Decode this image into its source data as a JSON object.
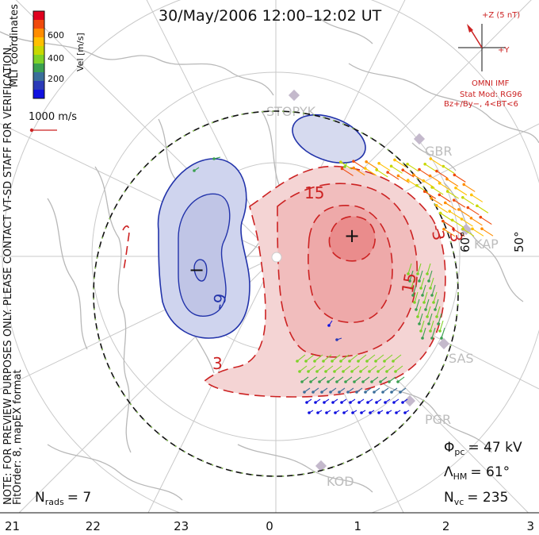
{
  "title": "30/May/2006 12:00–12:02 UT",
  "colorbar": {
    "label": "Vel [m/s]",
    "ticks": [
      "600",
      "400",
      "200"
    ],
    "colors": [
      "#e0001e",
      "#f04a0c",
      "#ff8c00",
      "#ffc000",
      "#c8d800",
      "#7ed228",
      "#3aa050",
      "#3a6e9a",
      "#2a3ab8",
      "#1010e0"
    ]
  },
  "side_labels": {
    "coords": "MLT coordinates",
    "note": "NOTE: FOR PREVIEW PURPOSES ONLY. PLEASE CONTACT VT-SD STAFF FOR VERIFICATION.",
    "fit": "FitOrder: 8, mapEX format"
  },
  "scale_vector_label": "1000 m/s",
  "imf": {
    "z_label": "+Z (5 nT)",
    "y_label": "+Y",
    "source": "OMNI IMF",
    "model": "Stat Mod: RG96",
    "condition": "Bz+/By−, 4<BT<6"
  },
  "stats": {
    "phi_symbol": "Φ",
    "phi_sub": "pc",
    "phi_value": "= 47 kV",
    "lambda_symbol": "Λ",
    "lambda_sub": "HM",
    "lambda_value": "= 61°",
    "nvc_symbol": "N",
    "nvc_sub": "vc",
    "nvc_value": "= 235",
    "nrads_symbol": "N",
    "nrads_sub": "rads",
    "nrads_value": "= 7"
  },
  "latitude_labels": [
    "60°",
    "50°"
  ],
  "stations": [
    "STOPYK",
    "GBR",
    "KAP",
    "SAS",
    "PGR",
    "KOD"
  ],
  "chart_data": {
    "type": "scatter",
    "mlt_ticks": [
      "21",
      "22",
      "23",
      "0",
      "1",
      "2",
      "3"
    ],
    "contour_labels": [
      "-9",
      "15",
      "-3",
      "3",
      "-3",
      "15",
      "3"
    ],
    "potential_max_marker": "+",
    "potential_min_marker": "−"
  }
}
